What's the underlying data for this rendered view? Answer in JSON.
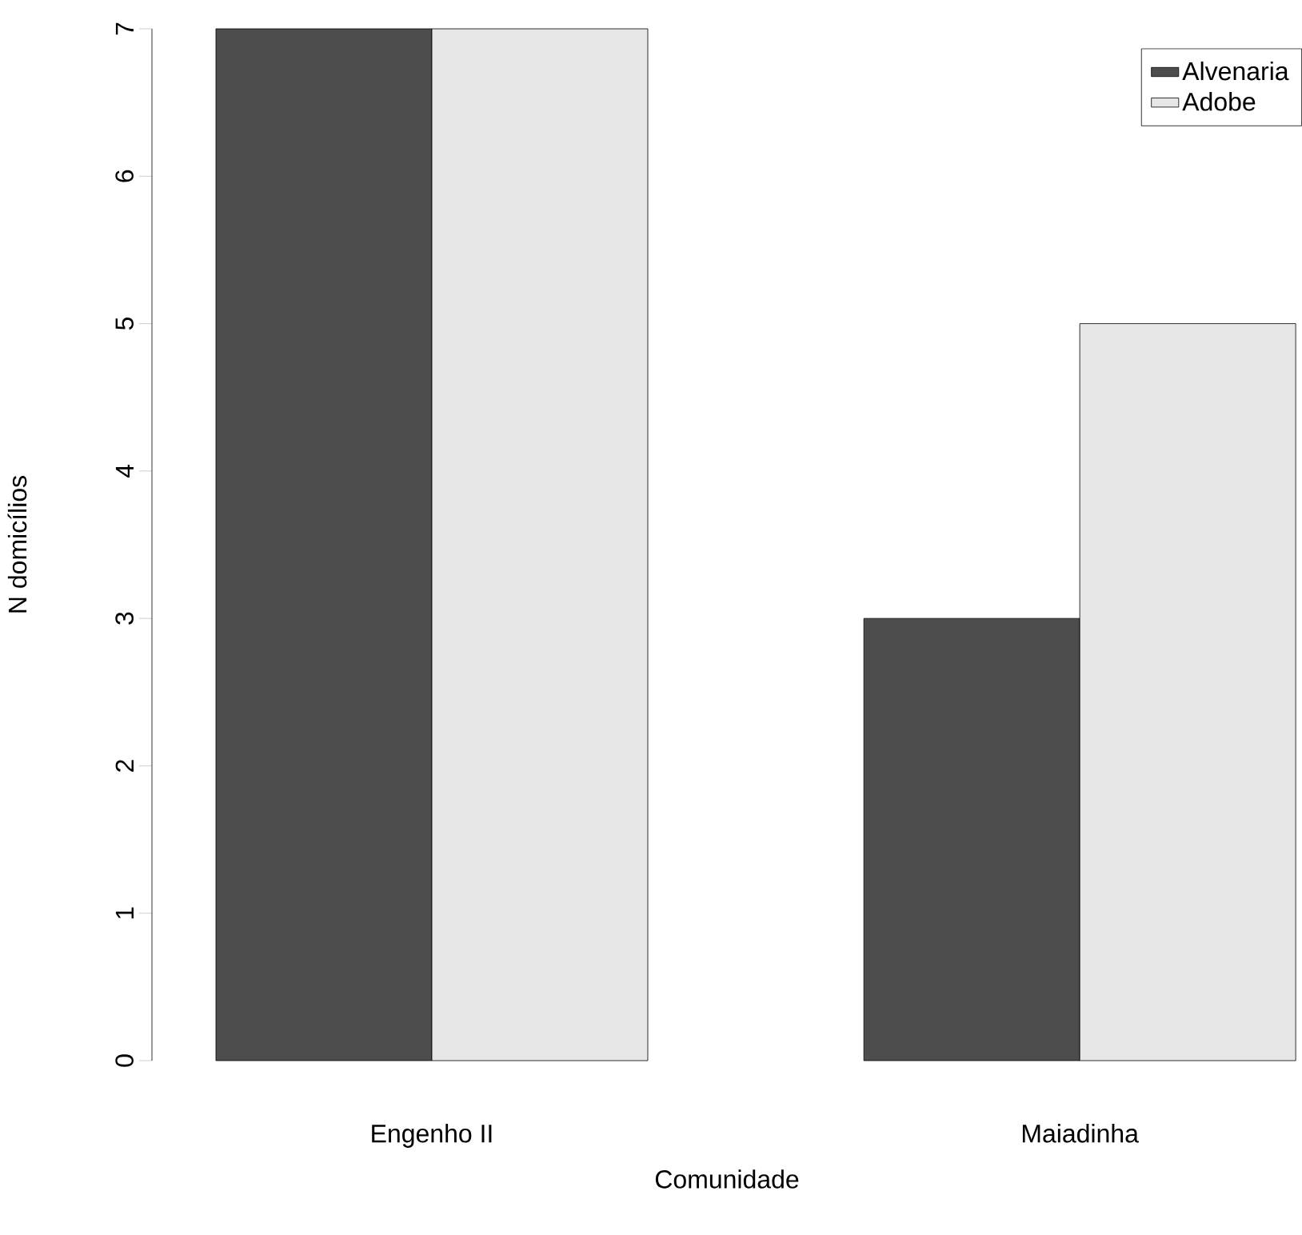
{
  "chart_data": {
    "type": "bar",
    "xlabel": "Comunidade",
    "ylabel": "N domicílios",
    "categories": [
      "Engenho II",
      "Maiadinha"
    ],
    "series": [
      {
        "name": "Alvenaria",
        "color": "#4d4d4d",
        "values": [
          7,
          3
        ]
      },
      {
        "name": "Adobe",
        "color": "#e6e6e6",
        "values": [
          7,
          5
        ]
      }
    ],
    "ylim": [
      0,
      7
    ],
    "yticks": [
      0,
      1,
      2,
      3,
      4,
      5,
      6,
      7
    ],
    "grid": false,
    "legend": "top right"
  }
}
